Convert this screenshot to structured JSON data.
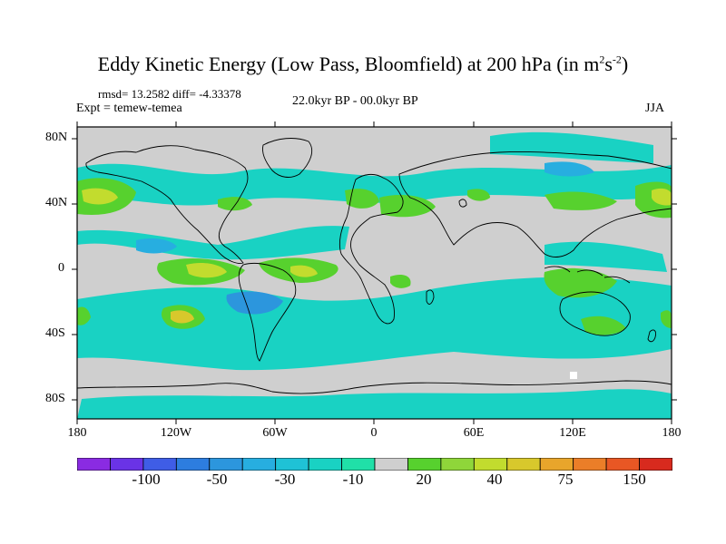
{
  "title": {
    "main": "Eddy Kinetic Energy (Low Pass, Bloomfield) at 200 hPa (in m",
    "sup1": "2",
    "mid": "s",
    "sup2": "-2",
    "close": ")"
  },
  "stats": "rmsd= 13.2582 diff= -4.33378",
  "experiment": "Expt = temew-temea",
  "period": "22.0kyr BP - 00.0kyr BP",
  "season": "JJA",
  "lat_labels": [
    "80N",
    "40N",
    "0",
    "40S",
    "80S"
  ],
  "lon_labels": [
    "180",
    "120W",
    "60W",
    "0",
    "60E",
    "120E",
    "180"
  ],
  "colorbar": {
    "colors": [
      "#8a2be2",
      "#6a33e6",
      "#3f5de6",
      "#2d7ddf",
      "#2c96dd",
      "#27aee0",
      "#1fc2d6",
      "#19d2c3",
      "#20e0a8",
      "#cfcfcf",
      "#57d12e",
      "#8fd63a",
      "#c2dc2e",
      "#d8c82c",
      "#e8a52b",
      "#eb7e28",
      "#e85724",
      "#d82a1e"
    ],
    "labels": [
      "-100",
      "-50",
      "-30",
      "-10",
      "20",
      "40",
      "75",
      "150"
    ]
  }
}
